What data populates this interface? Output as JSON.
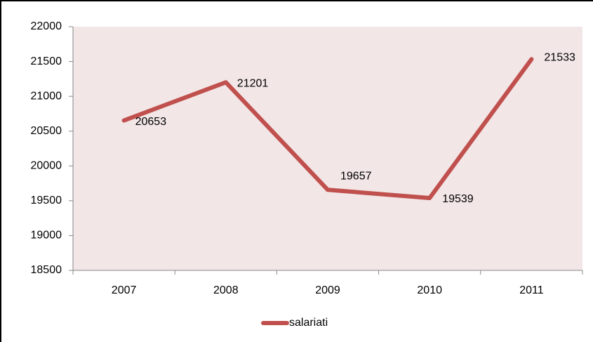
{
  "chart_data": {
    "type": "line",
    "categories": [
      "2007",
      "2008",
      "2009",
      "2010",
      "2011"
    ],
    "series": [
      {
        "name": "salariati",
        "color": "#c0504d",
        "values": [
          20653,
          21201,
          19657,
          19539,
          21533
        ]
      }
    ],
    "ylim": [
      18500,
      22000
    ],
    "yticks": [
      18500,
      19000,
      19500,
      20000,
      20500,
      21000,
      21500,
      22000
    ],
    "grid": false,
    "legend": "bottom",
    "plot_background": "#f2e6e6"
  }
}
